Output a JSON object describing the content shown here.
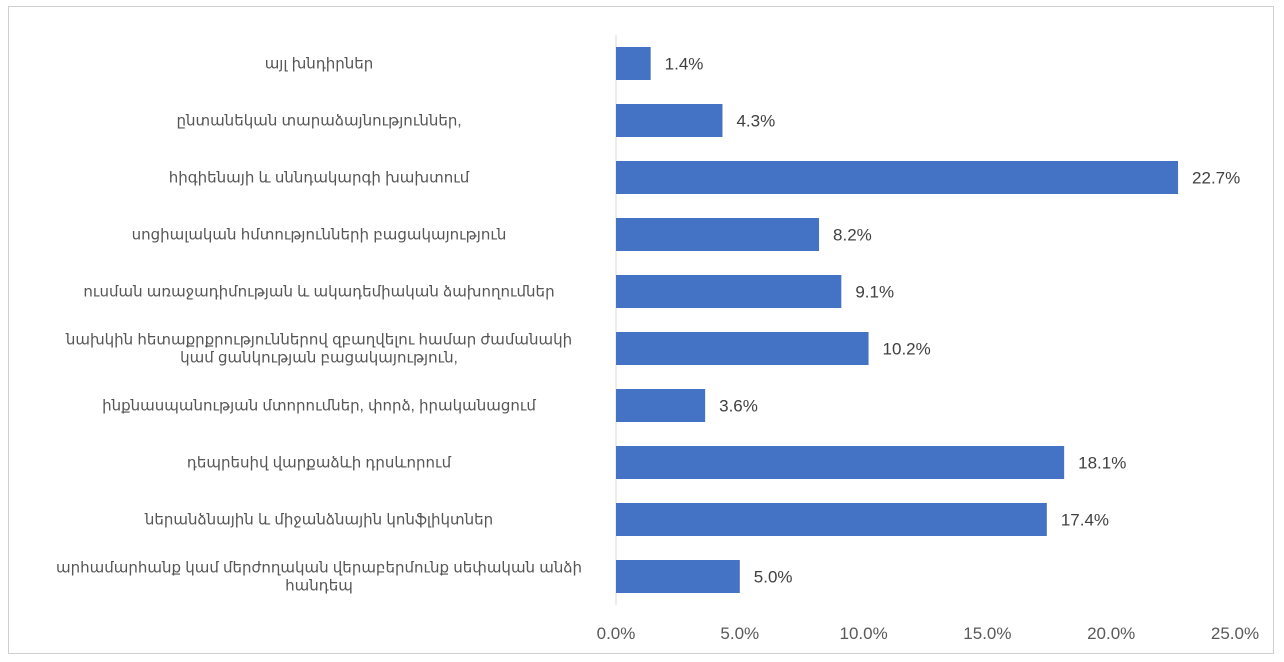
{
  "chart_data": {
    "type": "bar",
    "orientation": "horizontal",
    "title": "",
    "xlabel": "",
    "ylabel": "",
    "categories": [
      [
        "այլ խնդիրներ"
      ],
      [
        "ընտանեկան տարաձայնություններ,"
      ],
      [
        "հիգիենայի և սննդակարգի խախտում"
      ],
      [
        "սոցիալական հմտությունների բացակայություն"
      ],
      [
        "ուսման առաջադիմության և ակադեմիական ձախողումներ"
      ],
      [
        "նախկին հետաքրքրություններով զբաղվելու համար ժամանակի",
        "կամ ցանկության բացակայություն,"
      ],
      [
        "ինքնասպանության մտորումներ, փորձ, իրականացում"
      ],
      [
        "դեպրեսիվ վարքաձևի դրսևորում"
      ],
      [
        "ներանձնային և միջանձնային կոնֆլիկտներ"
      ],
      [
        "արհամարհանք կամ մերժողական վերաբերմունք սեփական անձի",
        "հանդեպ"
      ]
    ],
    "values": [
      1.4,
      4.3,
      22.7,
      8.2,
      9.1,
      10.2,
      3.6,
      18.1,
      17.4,
      5.0
    ],
    "value_labels": [
      "1.4%",
      "4.3%",
      "22.7%",
      "8.2%",
      "9.1%",
      "10.2%",
      "3.6%",
      "18.1%",
      "17.4%",
      "5.0%"
    ],
    "xlim": [
      0,
      25
    ],
    "x_ticks": [
      0,
      5,
      10,
      15,
      20,
      25
    ],
    "x_tick_labels": [
      "0.0%",
      "5.0%",
      "10.0%",
      "15.0%",
      "20.0%",
      "25.0%"
    ],
    "bar_color": "#4472c4",
    "grid": false,
    "legend": "none"
  }
}
